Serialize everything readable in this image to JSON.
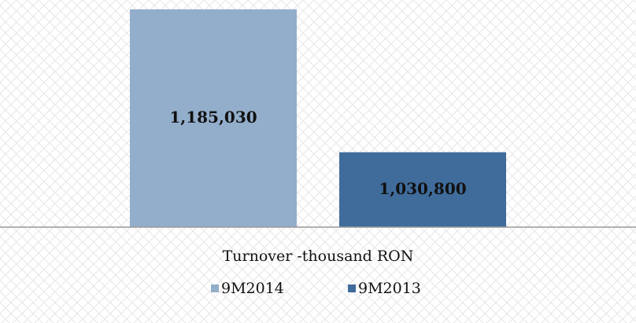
{
  "chart_data": {
    "type": "bar",
    "categories": [
      "Turnover -thousand RON"
    ],
    "series": [
      {
        "name": "9M2014",
        "color": "#93aecb",
        "values": [
          1185030
        ],
        "value_labels": [
          "1,185,030"
        ]
      },
      {
        "name": "9M2013",
        "color": "#3f6c9b",
        "values": [
          1030800
        ],
        "value_labels": [
          "1,030,800"
        ]
      }
    ],
    "ylim": [
      950000,
      1190000
    ],
    "legend": "bottom"
  }
}
